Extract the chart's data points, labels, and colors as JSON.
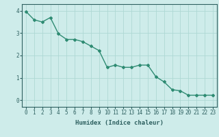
{
  "x": [
    0,
    1,
    2,
    3,
    4,
    5,
    6,
    7,
    8,
    9,
    10,
    11,
    12,
    13,
    14,
    15,
    16,
    17,
    18,
    19,
    20,
    21,
    22,
    23
  ],
  "y": [
    3.97,
    3.6,
    3.5,
    3.7,
    2.97,
    2.72,
    2.72,
    2.62,
    2.42,
    2.22,
    1.47,
    1.57,
    1.47,
    1.47,
    1.57,
    1.57,
    1.05,
    0.82,
    0.47,
    0.42,
    0.22,
    0.22,
    0.22,
    0.22
  ],
  "line_color": "#2e8b72",
  "marker": "D",
  "marker_size": 2.0,
  "bg_color": "#ceecea",
  "grid_color": "#aed8d4",
  "tick_color": "#2e6060",
  "xlabel": "Humidex (Indice chaleur)",
  "xlabel_fontsize": 6.5,
  "ylim": [
    -0.3,
    4.3
  ],
  "xlim": [
    -0.5,
    23.5
  ],
  "yticks": [
    0,
    1,
    2,
    3,
    4
  ],
  "xticks": [
    0,
    1,
    2,
    3,
    4,
    5,
    6,
    7,
    8,
    9,
    10,
    11,
    12,
    13,
    14,
    15,
    16,
    17,
    18,
    19,
    20,
    21,
    22,
    23
  ],
  "tick_label_fontsize": 5.5,
  "linewidth": 1.0
}
